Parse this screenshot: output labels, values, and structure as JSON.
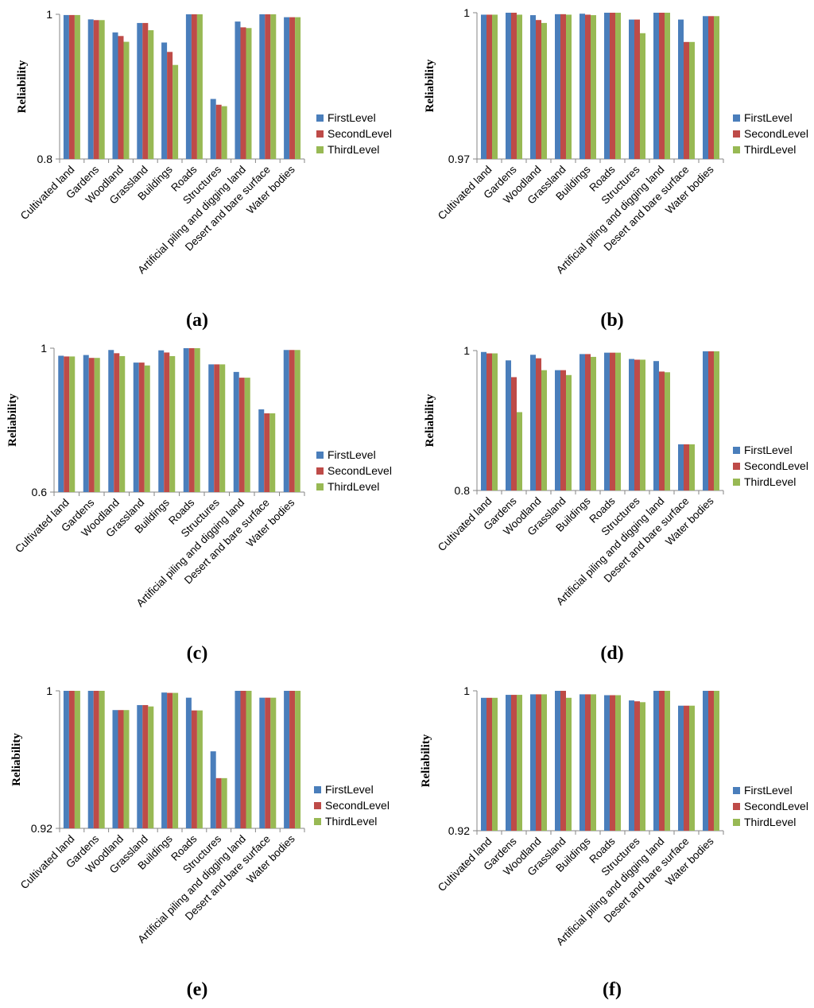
{
  "colors": {
    "FirstLevel": "#4a7ebb",
    "SecondLevel": "#be4b48",
    "ThirdLevel": "#98b954"
  },
  "chart_data": [
    {
      "panel": "(a)",
      "type": "bar",
      "ylabel": "Reliability",
      "ylim": [
        0.8,
        1
      ],
      "yticks": [
        "0.8",
        "1"
      ],
      "legend": "right",
      "categories": [
        "Cultivated land",
        "Gardens",
        "Woodland",
        "Grassland",
        "Buildings",
        "Roads",
        "Structures",
        "Artificial piling and digging land",
        "Desert and bare surface",
        "Water bodies"
      ],
      "series": [
        {
          "name": "FirstLevel",
          "values": [
            0.999,
            0.993,
            0.975,
            0.988,
            0.961,
            1.0,
            0.883,
            0.99,
            1.0,
            0.996
          ]
        },
        {
          "name": "SecondLevel",
          "values": [
            0.999,
            0.992,
            0.97,
            0.988,
            0.948,
            1.0,
            0.875,
            0.982,
            1.0,
            0.996
          ]
        },
        {
          "name": "ThirdLevel",
          "values": [
            0.999,
            0.992,
            0.962,
            0.978,
            0.93,
            1.0,
            0.873,
            0.981,
            1.0,
            0.996
          ]
        }
      ]
    },
    {
      "panel": "(b)",
      "type": "bar",
      "ylabel": "Reliability",
      "ylim": [
        0.97,
        1
      ],
      "yticks": [
        "0.97",
        "1"
      ],
      "legend": "right",
      "categories": [
        "Cultivated land",
        "Gardens",
        "Woodland",
        "Grassland",
        "Buildings",
        "Roads",
        "Structures",
        "Artificial piling and digging land",
        "Desert and bare surface",
        "Water bodies"
      ],
      "series": [
        {
          "name": "FirstLevel",
          "values": [
            0.9996,
            1.0,
            0.9995,
            0.9997,
            0.9998,
            1.0,
            0.9986,
            1.0,
            0.9986,
            0.9993
          ]
        },
        {
          "name": "SecondLevel",
          "values": [
            0.9996,
            1.0,
            0.9985,
            0.9997,
            0.9996,
            1.0,
            0.9986,
            1.0,
            0.994,
            0.9993
          ]
        },
        {
          "name": "ThirdLevel",
          "values": [
            0.9996,
            0.9996,
            0.9979,
            0.9996,
            0.9995,
            1.0,
            0.9958,
            1.0,
            0.994,
            0.9993
          ]
        }
      ]
    },
    {
      "panel": "(c)",
      "type": "bar",
      "ylabel": "Reliability",
      "ylim": [
        0.6,
        1
      ],
      "yticks": [
        "0.6",
        "1"
      ],
      "legend": "right",
      "categories": [
        "Cultivated land",
        "Gardens",
        "Woodland",
        "Grassland",
        "Buildings",
        "Roads",
        "Structures",
        "Artificial piling and digging land",
        "Desert and bare surface",
        "Water bodies"
      ],
      "series": [
        {
          "name": "FirstLevel",
          "values": [
            0.979,
            0.981,
            0.995,
            0.96,
            0.994,
            1.0,
            0.955,
            0.934,
            0.83,
            0.995
          ]
        },
        {
          "name": "SecondLevel",
          "values": [
            0.977,
            0.973,
            0.986,
            0.96,
            0.988,
            1.0,
            0.955,
            0.918,
            0.819,
            0.995
          ]
        },
        {
          "name": "ThirdLevel",
          "values": [
            0.977,
            0.973,
            0.978,
            0.952,
            0.978,
            1.0,
            0.955,
            0.918,
            0.819,
            0.995
          ]
        }
      ]
    },
    {
      "panel": "(d)",
      "type": "bar",
      "ylabel": "Reliability",
      "ylim": [
        0.8,
        1
      ],
      "yticks": [
        "0.8",
        "1"
      ],
      "legend": "right",
      "categories": [
        "Cultivated land",
        "Gardens",
        "Woodland",
        "Grassland",
        "Buildings",
        "Roads",
        "Structures",
        "Artificial piling and digging land",
        "Desert and bare surface",
        "Water bodies"
      ],
      "series": [
        {
          "name": "FirstLevel",
          "values": [
            0.998,
            0.986,
            0.994,
            0.972,
            0.995,
            0.997,
            0.988,
            0.985,
            0.866,
            0.999
          ]
        },
        {
          "name": "SecondLevel",
          "values": [
            0.996,
            0.962,
            0.989,
            0.972,
            0.995,
            0.997,
            0.987,
            0.97,
            0.866,
            0.999
          ]
        },
        {
          "name": "ThirdLevel",
          "values": [
            0.996,
            0.912,
            0.972,
            0.965,
            0.991,
            0.997,
            0.987,
            0.969,
            0.866,
            0.999
          ]
        }
      ]
    },
    {
      "panel": "(e)",
      "type": "bar",
      "ylabel": "Reliability",
      "ylim": [
        0.92,
        1
      ],
      "yticks": [
        "0.92",
        "1"
      ],
      "legend": "right",
      "categories": [
        "Cultivated land",
        "Gardens",
        "Woodland",
        "Grassland",
        "Buildings",
        "Roads",
        "Structures",
        "Artificial piling and digging land",
        "Desert and bare surface",
        "Water bodies"
      ],
      "series": [
        {
          "name": "FirstLevel",
          "values": [
            1.0,
            1.0,
            0.9888,
            0.9917,
            0.999,
            0.996,
            0.9648,
            1.0,
            0.996,
            1.0
          ]
        },
        {
          "name": "SecondLevel",
          "values": [
            1.0,
            1.0,
            0.9888,
            0.9917,
            0.9988,
            0.9886,
            0.9492,
            1.0,
            0.996,
            1.0
          ]
        },
        {
          "name": "ThirdLevel",
          "values": [
            1.0,
            1.0,
            0.9888,
            0.9909,
            0.9988,
            0.9886,
            0.9492,
            1.0,
            0.996,
            1.0
          ]
        }
      ]
    },
    {
      "panel": "(f)",
      "type": "bar",
      "ylabel": "Reliability",
      "ylim": [
        0.92,
        1
      ],
      "yticks": [
        "0.92",
        "1"
      ],
      "legend": "right",
      "categories": [
        "Cultivated land",
        "Gardens",
        "Woodland",
        "Grassland",
        "Buildings",
        "Roads",
        "Structures",
        "Artificial piling and digging land",
        "Desert and bare surface",
        "Water bodies"
      ],
      "series": [
        {
          "name": "FirstLevel",
          "values": [
            0.996,
            0.9977,
            0.998,
            1.0,
            0.998,
            0.9975,
            0.9945,
            1.0,
            0.9915,
            1.0
          ]
        },
        {
          "name": "SecondLevel",
          "values": [
            0.996,
            0.9977,
            0.998,
            1.0,
            0.998,
            0.9975,
            0.994,
            1.0,
            0.9915,
            1.0
          ]
        },
        {
          "name": "ThirdLevel",
          "values": [
            0.996,
            0.9977,
            0.998,
            0.996,
            0.998,
            0.9975,
            0.9935,
            1.0,
            0.9915,
            1.0
          ]
        }
      ]
    }
  ]
}
